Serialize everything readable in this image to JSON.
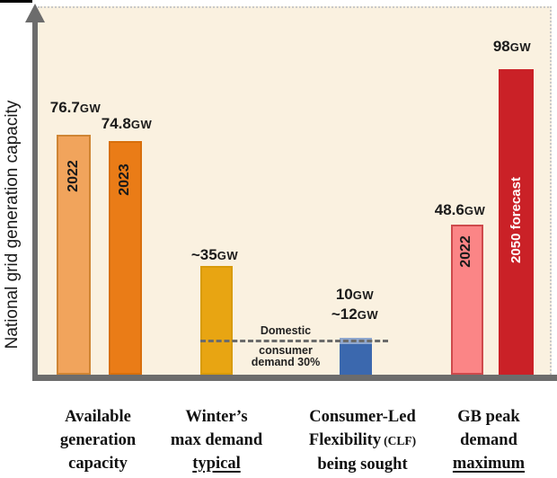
{
  "figure": {
    "y_axis_label": "National grid generation capacity"
  },
  "chart_data": {
    "type": "bar",
    "title": "",
    "ylabel": "National grid generation capacity",
    "xlabel": "",
    "unit": "GW",
    "ylim": [
      0,
      110
    ],
    "grid": false,
    "legend": "none",
    "plot_background": "#FAF1E0",
    "groups": [
      {
        "category": "Available generation capacity",
        "bars": [
          {
            "label": "2022",
            "value": 76.7,
            "display": "76.7GW",
            "color": "#F1A45C"
          },
          {
            "label": "2023",
            "value": 74.8,
            "display": "74.8GW",
            "color": "#EA7C17"
          }
        ]
      },
      {
        "category": "Winter's max demand typical",
        "bars": [
          {
            "label": "",
            "value": 35,
            "approx": true,
            "display": "~35GW",
            "color": "#E8A512"
          }
        ]
      },
      {
        "category": "Consumer-Led Flexibility (CLF) being sought",
        "bars": [
          {
            "label": "",
            "value_min": 10,
            "value_max": 12,
            "display": "10GW ~12GW",
            "color": "#3B68AE",
            "range_color": "#8FA7CE"
          }
        ]
      },
      {
        "category": "GB peak demand maximum",
        "bars": [
          {
            "label": "2022",
            "value": 48.6,
            "display": "48.6GW",
            "color": "#FB8586"
          },
          {
            "label": "2050 forecast",
            "value": 98,
            "display": "98GW",
            "color": "#CA2127"
          }
        ]
      }
    ],
    "annotations": [
      {
        "type": "dashed-line",
        "y_value": 10.5,
        "text": "Domestic consumer demand 30%",
        "color": "#6B6B6B"
      }
    ]
  },
  "labels": {
    "b1": {
      "value": "76.7",
      "unit": "GW",
      "year": "2022"
    },
    "b2": {
      "value": "74.8",
      "unit": "GW",
      "year": "2023"
    },
    "b3": {
      "value": "~35",
      "unit": "GW"
    },
    "b4": {
      "value1": "10",
      "unit1": "GW",
      "value2": "~12",
      "unit2": "GW"
    },
    "b5": {
      "value": "48.6",
      "unit": "GW",
      "year": "2022"
    },
    "b6": {
      "value": "98",
      "unit": "GW",
      "inbar": "2050 forecast"
    }
  },
  "annotation_text": {
    "l1": "Domestic",
    "l2": "consumer",
    "l3": "demand 30%"
  },
  "categories": [
    {
      "l1": "Available",
      "l2": "generation",
      "l3": "capacity"
    },
    {
      "l1": "Winter’s",
      "l2": "max demand",
      "l3": "typical"
    },
    {
      "l1": "Consumer-Led",
      "l2a": "Flexibility",
      "l2b": "(CLF)",
      "l3": "being sought"
    },
    {
      "l1": "GB peak",
      "l2": "demand",
      "l3": "maximum"
    }
  ],
  "colors": {
    "page_background": "#FFFFFF",
    "plot_background": "#FAF1E0",
    "axis": "#6C6C6C",
    "dashed_line": "#6B6B6B",
    "bar_available_2022": "#F1A45C",
    "bar_available_2023": "#EA7C17",
    "bar_winter_demand": "#E8A512",
    "bar_clf": "#3B68AE",
    "bar_clf_range": "#8FA7CE",
    "bar_peak_2022": "#FB8586",
    "bar_2050_forecast": "#CA2127"
  }
}
